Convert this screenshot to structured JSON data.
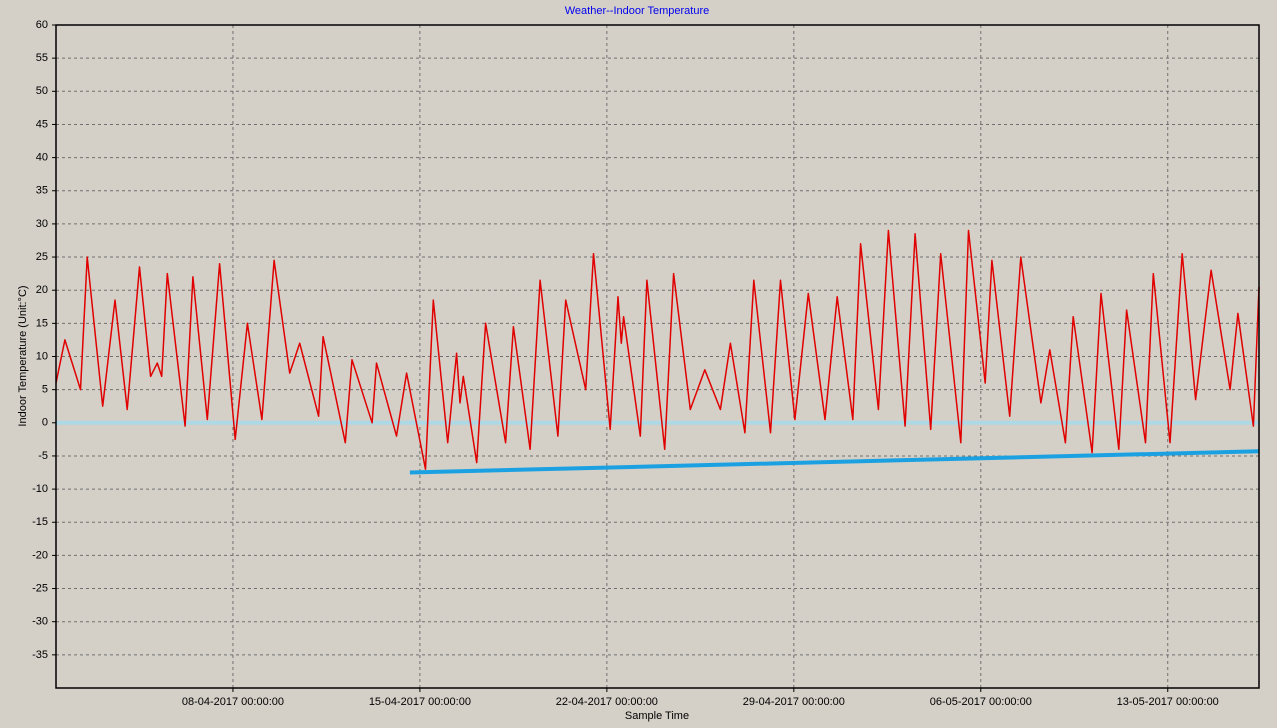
{
  "chart_data": {
    "type": "line",
    "title": "Weather--Indoor Temperature",
    "xlabel": "Sample Time",
    "ylabel": "Indoor Temperature (Unit:°C)",
    "xlim": [
      "01-04-2017 09:00:00",
      "16-05-2017 10:00:00"
    ],
    "xticks": [
      "08-04-2017 00:00:00",
      "15-04-2017 00:00:00",
      "22-04-2017 00:00:00",
      "29-04-2017 00:00:00",
      "06-05-2017 00:00:00",
      "13-05-2017 00:00:00"
    ],
    "ylim": [
      -40,
      60
    ],
    "yticks": [
      60,
      55,
      50,
      45,
      40,
      35,
      30,
      25,
      20,
      15,
      10,
      5,
      0,
      -5,
      -10,
      -15,
      -20,
      -25,
      -30,
      -35
    ],
    "grid": true,
    "series": [
      {
        "color": "#e00000",
        "width": 1.5,
        "x": [
          "01-04-2017 09:00:00",
          "01-04-2017 17:00:00",
          "02-04-2017 07:00:00",
          "02-04-2017 13:00:00",
          "03-04-2017 03:00:00",
          "03-04-2017 14:00:00",
          "04-04-2017 01:00:00",
          "04-04-2017 12:00:00",
          "04-04-2017 22:00:00",
          "05-04-2017 04:00:00",
          "05-04-2017 08:00:00",
          "05-04-2017 13:00:00",
          "06-04-2017 05:00:00",
          "06-04-2017 12:00:00",
          "07-04-2017 01:00:00",
          "07-04-2017 12:00:00",
          "08-04-2017 02:00:00",
          "08-04-2017 13:00:00",
          "09-04-2017 02:00:00",
          "09-04-2017 13:00:00",
          "10-04-2017 03:00:00",
          "10-04-2017 12:00:00",
          "11-04-2017 05:00:00",
          "11-04-2017 09:00:00",
          "12-04-2017 05:00:00",
          "12-04-2017 11:00:00",
          "13-04-2017 05:00:00",
          "13-04-2017 09:00:00",
          "14-04-2017 03:00:00",
          "14-04-2017 12:00:00",
          "15-04-2017 05:00:00",
          "15-04-2017 12:00:00",
          "16-04-2017 01:00:00",
          "16-04-2017 09:00:00",
          "16-04-2017 12:00:00",
          "16-04-2017 15:00:00",
          "17-04-2017 03:00:00",
          "17-04-2017 11:00:00",
          "18-04-2017 05:00:00",
          "18-04-2017 12:00:00",
          "19-04-2017 03:00:00",
          "19-04-2017 12:00:00",
          "20-04-2017 04:00:00",
          "20-04-2017 11:00:00",
          "21-04-2017 05:00:00",
          "21-04-2017 12:00:00",
          "22-04-2017 03:00:00",
          "22-04-2017 10:00:00",
          "22-04-2017 13:00:00",
          "22-04-2017 15:00:00",
          "23-04-2017 06:00:00",
          "23-04-2017 12:00:00",
          "24-04-2017 04:00:00",
          "24-04-2017 12:00:00",
          "25-04-2017 03:00:00",
          "25-04-2017 16:00:00",
          "26-04-2017 06:00:00",
          "26-04-2017 15:00:00",
          "27-04-2017 04:00:00",
          "27-04-2017 12:00:00",
          "28-04-2017 03:00:00",
          "28-04-2017 12:00:00",
          "29-04-2017 01:00:00",
          "29-04-2017 13:00:00",
          "30-04-2017 04:00:00",
          "30-04-2017 15:00:00",
          "01-05-2017 05:00:00",
          "01-05-2017 12:00:00",
          "02-05-2017 04:00:00",
          "02-05-2017 13:00:00",
          "03-05-2017 04:00:00",
          "03-05-2017 13:00:00",
          "04-05-2017 03:00:00",
          "04-05-2017 12:00:00",
          "05-05-2017 06:00:00",
          "05-05-2017 13:00:00",
          "06-05-2017 04:00:00",
          "06-05-2017 10:00:00",
          "07-05-2017 02:00:00",
          "07-05-2017 12:00:00",
          "08-05-2017 06:00:00",
          "08-05-2017 14:00:00",
          "09-05-2017 04:00:00",
          "09-05-2017 11:00:00",
          "10-05-2017 04:00:00",
          "10-05-2017 12:00:00",
          "11-05-2017 04:00:00",
          "11-05-2017 11:00:00",
          "12-05-2017 04:00:00",
          "12-05-2017 11:00:00",
          "13-05-2017 02:00:00",
          "13-05-2017 13:00:00",
          "14-05-2017 01:00:00",
          "14-05-2017 15:00:00",
          "15-05-2017 08:00:00",
          "15-05-2017 15:00:00",
          "16-05-2017 05:00:00",
          "16-05-2017 10:00:00"
        ],
        "values": [
          6,
          12.5,
          5,
          25,
          2.5,
          18.5,
          2,
          23.5,
          7,
          9,
          7,
          22.5,
          -0.5,
          22,
          0.5,
          24,
          -2.5,
          15,
          0.5,
          24.5,
          7.5,
          12,
          1,
          13,
          -3,
          9.5,
          0,
          9,
          -2,
          7.5,
          -7,
          18.5,
          -3,
          10.5,
          3,
          7,
          -6,
          15,
          -3,
          14.5,
          -4,
          21.5,
          -2,
          18.5,
          5,
          25.5,
          -1,
          19,
          12,
          16,
          -2,
          21.5,
          -4,
          22.5,
          2,
          8,
          2,
          12,
          -1.5,
          21.5,
          -1.5,
          21.5,
          0.5,
          19.5,
          0.5,
          19,
          0.5,
          27,
          2,
          29,
          -0.5,
          28.5,
          -1,
          25.5,
          -3,
          29,
          6,
          24.5,
          1,
          25,
          3,
          11,
          -3,
          16,
          -4.5,
          19.5,
          -4,
          17,
          -3,
          22.5,
          -3,
          25.5,
          3.5,
          23,
          5,
          16.5,
          -0.5,
          20.5
        ]
      },
      {
        "color": "#add8e6",
        "width": 4,
        "x": [
          "01-04-2017 09:00:00",
          "16-05-2017 10:00:00"
        ],
        "values": [
          0,
          0
        ]
      },
      {
        "color": "#1ba1e2",
        "width": 4,
        "x": [
          "14-04-2017 15:00:00",
          "16-05-2017 10:00:00"
        ],
        "values": [
          -7.5,
          -4.3
        ]
      }
    ]
  }
}
